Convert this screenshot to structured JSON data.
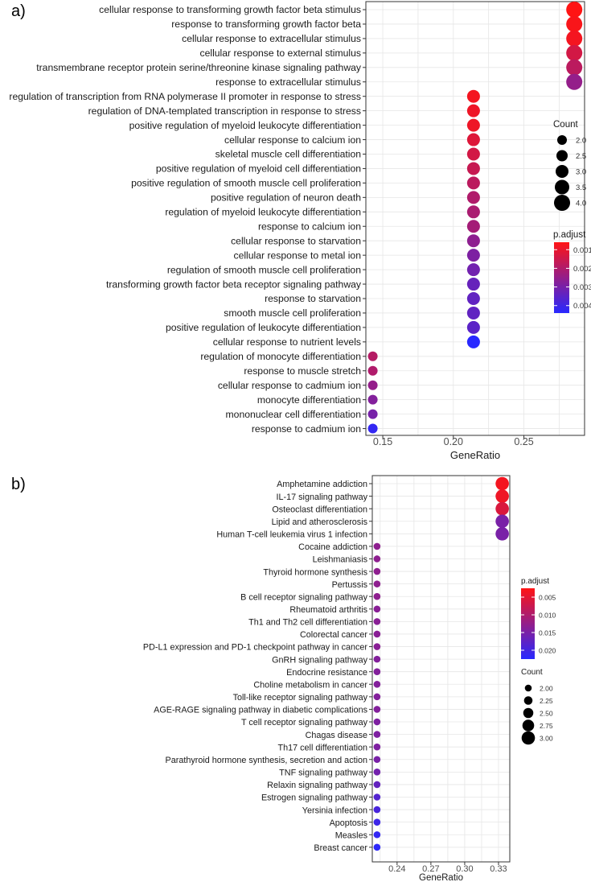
{
  "chart_data": [
    {
      "panel_label": "a)",
      "type": "scatter",
      "title": "",
      "xlabel": "GeneRatio",
      "ylabel": "",
      "xlim": [
        0.138,
        0.293
      ],
      "xticks": [
        0.15,
        0.2,
        0.25
      ],
      "xtick_labels": [
        "0.15",
        "0.20",
        "0.25"
      ],
      "grid": true,
      "categories": [
        "cellular response to transforming growth factor beta stimulus",
        "response to transforming growth factor beta",
        "cellular response to extracellular stimulus",
        "cellular response to external stimulus",
        "transmembrane receptor protein serine/threonine kinase signaling pathway",
        "response to extracellular stimulus",
        "regulation of transcription from RNA polymerase II promoter in response to stress",
        "regulation of DNA-templated transcription in response to stress",
        "positive regulation of myeloid leukocyte differentiation",
        "cellular response to calcium ion",
        "skeletal muscle cell differentiation",
        "positive regulation of myeloid cell differentiation",
        "positive regulation of smooth muscle cell proliferation",
        "positive regulation of neuron death",
        "regulation of myeloid leukocyte differentiation",
        "response to calcium ion",
        "cellular response to starvation",
        "cellular response to metal ion",
        "regulation of smooth muscle cell proliferation",
        "transforming growth factor beta receptor signaling pathway",
        "response to starvation",
        "smooth muscle cell proliferation",
        "positive regulation of leukocyte differentiation",
        "cellular response to nutrient levels",
        "regulation of monocyte differentiation",
        "response to muscle stretch",
        "cellular response to cadmium ion",
        "monocyte differentiation",
        "mononuclear cell differentiation",
        "response to cadmium ion"
      ],
      "gene_ratio": [
        0.2857,
        0.2857,
        0.2857,
        0.2857,
        0.2857,
        0.2857,
        0.2143,
        0.2143,
        0.2143,
        0.2143,
        0.2143,
        0.2143,
        0.2143,
        0.2143,
        0.2143,
        0.2143,
        0.2143,
        0.2143,
        0.2143,
        0.2143,
        0.2143,
        0.2143,
        0.2143,
        0.2143,
        0.1429,
        0.1429,
        0.1429,
        0.1429,
        0.1429,
        0.1429
      ],
      "count": [
        4,
        4,
        4,
        4,
        4,
        4,
        3,
        3,
        3,
        3,
        3,
        3,
        3,
        3,
        3,
        3,
        3,
        3,
        3,
        3,
        3,
        3,
        3,
        3,
        2,
        2,
        2,
        2,
        2,
        2
      ],
      "p_adjust": [
        0.0006,
        0.0007,
        0.0008,
        0.0014,
        0.0018,
        0.0025,
        0.0008,
        0.0009,
        0.0009,
        0.0012,
        0.0014,
        0.0016,
        0.0018,
        0.002,
        0.0021,
        0.0022,
        0.0026,
        0.0029,
        0.0031,
        0.0033,
        0.0034,
        0.0034,
        0.0035,
        0.0044,
        0.0019,
        0.002,
        0.0025,
        0.0028,
        0.003,
        0.0042
      ],
      "size_legend": {
        "title": "Count",
        "breaks": [
          2.0,
          2.5,
          3.0,
          3.5,
          4.0
        ],
        "labels": [
          "2.0",
          "2.5",
          "3.0",
          "3.5",
          "4.0"
        ]
      },
      "color_legend": {
        "title": "p.adjust",
        "range": [
          0.0006,
          0.0044
        ],
        "breaks": [
          0.001,
          0.002,
          0.003,
          0.004
        ],
        "labels": [
          "0.001",
          "0.002",
          "0.003",
          "0.004"
        ]
      },
      "legend_order": "size-first"
    },
    {
      "panel_label": "b)",
      "type": "scatter",
      "title": "",
      "xlabel": "GeneRatio",
      "ylabel": "",
      "xlim": [
        0.218,
        0.34
      ],
      "xticks": [
        0.24,
        0.27,
        0.3,
        0.33
      ],
      "xtick_labels": [
        "0.24",
        "0.27",
        "0.30",
        "0.33"
      ],
      "grid": true,
      "categories": [
        "Amphetamine addiction",
        "IL-17 signaling pathway",
        "Osteoclast differentiation",
        "Lipid and atherosclerosis",
        "Human T-cell leukemia virus 1 infection",
        "Cocaine addiction",
        "Leishmaniasis",
        "Thyroid hormone synthesis",
        "Pertussis",
        "B cell receptor signaling pathway",
        "Rheumatoid arthritis",
        "Th1 and Th2 cell differentiation",
        "Colorectal cancer",
        "PD-L1 expression and PD-1 checkpoint pathway in cancer",
        "GnRH signaling pathway",
        "Endocrine resistance",
        "Choline metabolism in cancer",
        "Toll-like receptor signaling pathway",
        "AGE-RAGE signaling pathway in diabetic complications",
        "T cell receptor signaling pathway",
        "Chagas disease",
        "Th17 cell differentiation",
        "Parathyroid hormone synthesis, secretion and action",
        "TNF signaling pathway",
        "Relaxin signaling pathway",
        "Estrogen signaling pathway",
        "Yersinia infection",
        "Apoptosis",
        "Measles",
        "Breast cancer"
      ],
      "gene_ratio": [
        0.3333,
        0.3333,
        0.3333,
        0.3333,
        0.3333,
        0.2222,
        0.2222,
        0.2222,
        0.2222,
        0.2222,
        0.2222,
        0.2222,
        0.2222,
        0.2222,
        0.2222,
        0.2222,
        0.2222,
        0.2222,
        0.2222,
        0.2222,
        0.2222,
        0.2222,
        0.2222,
        0.2222,
        0.2222,
        0.2222,
        0.2222,
        0.2222,
        0.2222,
        0.2222
      ],
      "count": [
        3,
        3,
        3,
        3,
        3,
        2,
        2,
        2,
        2,
        2,
        2,
        2,
        2,
        2,
        2,
        2,
        2,
        2,
        2,
        2,
        2,
        2,
        2,
        2,
        2,
        2,
        2,
        2,
        2,
        2
      ],
      "p_adjust": [
        0.0035,
        0.004,
        0.006,
        0.015,
        0.015,
        0.013,
        0.013,
        0.013,
        0.013,
        0.013,
        0.0135,
        0.0135,
        0.0135,
        0.0135,
        0.014,
        0.014,
        0.014,
        0.014,
        0.014,
        0.0145,
        0.0145,
        0.0145,
        0.015,
        0.0155,
        0.017,
        0.0185,
        0.0195,
        0.0205,
        0.0215,
        0.022
      ],
      "size_legend": {
        "title": "Count",
        "breaks": [
          2.0,
          2.25,
          2.5,
          2.75,
          3.0
        ],
        "labels": [
          "2.00",
          "2.25",
          "2.50",
          "2.75",
          "3.00"
        ]
      },
      "color_legend": {
        "title": "p.adjust",
        "range": [
          0.0025,
          0.0225
        ],
        "breaks": [
          0.005,
          0.01,
          0.015,
          0.02
        ],
        "labels": [
          "0.005",
          "0.010",
          "0.015",
          "0.020"
        ]
      },
      "legend_order": "color-first"
    }
  ]
}
